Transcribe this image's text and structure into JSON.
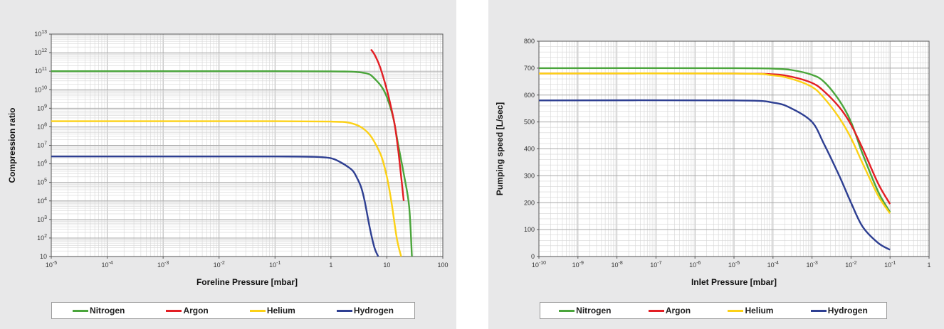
{
  "chart_data": [
    {
      "type": "line",
      "xlabel": "Foreline Pressure [mbar]",
      "ylabel": "Compression ratio",
      "xscale": "log",
      "yscale": "log",
      "xlim": [
        1e-05,
        100
      ],
      "ylim": [
        10,
        10000000000000
      ],
      "grid": true,
      "legend": "bottom",
      "x_ticks": [
        {
          "base": "10",
          "exp": "-5"
        },
        {
          "base": "10",
          "exp": "-4"
        },
        {
          "base": "10",
          "exp": "-3"
        },
        {
          "base": "10",
          "exp": "-2"
        },
        {
          "base": "10",
          "exp": "-1"
        },
        {
          "base": "1",
          "exp": ""
        },
        {
          "base": "10",
          "exp": ""
        },
        {
          "base": "100",
          "exp": ""
        }
      ],
      "y_ticks": [
        {
          "base": "10",
          "exp": ""
        },
        {
          "base": "10",
          "exp": "2"
        },
        {
          "base": "10",
          "exp": "3"
        },
        {
          "base": "10",
          "exp": "4"
        },
        {
          "base": "10",
          "exp": "5"
        },
        {
          "base": "10",
          "exp": "6"
        },
        {
          "base": "10",
          "exp": "7"
        },
        {
          "base": "10",
          "exp": "8"
        },
        {
          "base": "10",
          "exp": "9"
        },
        {
          "base": "10",
          "exp": "10"
        },
        {
          "base": "10",
          "exp": "11"
        },
        {
          "base": "10",
          "exp": "12"
        },
        {
          "base": "10",
          "exp": "13"
        }
      ],
      "series": [
        {
          "name": "Nitrogen",
          "color": "#4aa53b",
          "x": [
            1e-05,
            0.001,
            0.1,
            1,
            2,
            3,
            4,
            5,
            6,
            8,
            10,
            13,
            16,
            20,
            25,
            28
          ],
          "y": [
            100000000000,
            100000000000,
            100000000000,
            98000000000,
            95000000000,
            90000000000,
            80000000000,
            65000000000,
            40000000000,
            15000000000,
            4000000000,
            300000000,
            10000000,
            300000,
            5000,
            10
          ]
        },
        {
          "name": "Argon",
          "color": "#e31e24",
          "x": [
            5.2,
            6,
            7,
            8,
            10,
            12,
            14,
            16,
            18,
            20
          ],
          "y": [
            1500000000000,
            800000000000,
            300000000000,
            100000000000,
            10000000000,
            1000000000,
            100000000,
            5000000,
            200000,
            10000
          ]
        },
        {
          "name": "Helium",
          "color": "#fcd116",
          "x": [
            1e-05,
            0.001,
            0.1,
            1,
            2,
            3,
            4,
            5,
            6,
            8,
            10,
            12,
            15,
            18
          ],
          "y": [
            200000000,
            200000000,
            200000000,
            190000000,
            170000000,
            120000000,
            70000000,
            35000000,
            15000000,
            2500000,
            200000,
            10000,
            100,
            10
          ]
        },
        {
          "name": "Hydrogen",
          "color": "#2e3f92",
          "x": [
            1e-05,
            0.001,
            0.1,
            0.5,
            1,
            1.5,
            2,
            2.5,
            3,
            3.5,
            4,
            5,
            6,
            7
          ],
          "y": [
            2500000,
            2500000,
            2500000,
            2400000,
            2000000,
            1200000,
            700000,
            400000,
            150000,
            50000,
            10000,
            300,
            30,
            10
          ]
        }
      ]
    },
    {
      "type": "line",
      "xlabel": "Inlet Pressure [mbar]",
      "ylabel": "Pumping speed [L/sec]",
      "xscale": "log",
      "yscale": "linear",
      "xlim": [
        1e-10,
        1
      ],
      "ylim": [
        0,
        800
      ],
      "grid": true,
      "legend": "bottom",
      "x_ticks": [
        {
          "base": "10",
          "exp": "-10"
        },
        {
          "base": "10",
          "exp": "-9"
        },
        {
          "base": "10",
          "exp": "-8"
        },
        {
          "base": "10",
          "exp": "-7"
        },
        {
          "base": "10",
          "exp": "-6"
        },
        {
          "base": "10",
          "exp": "-5"
        },
        {
          "base": "10",
          "exp": "-4"
        },
        {
          "base": "10",
          "exp": "-3"
        },
        {
          "base": "10",
          "exp": "-2"
        },
        {
          "base": "10",
          "exp": "-1"
        },
        {
          "base": "1",
          "exp": ""
        }
      ],
      "y_ticks": [
        {
          "base": "0",
          "exp": ""
        },
        {
          "base": "100",
          "exp": ""
        },
        {
          "base": "200",
          "exp": ""
        },
        {
          "base": "300",
          "exp": ""
        },
        {
          "base": "400",
          "exp": ""
        },
        {
          "base": "500",
          "exp": ""
        },
        {
          "base": "600",
          "exp": ""
        },
        {
          "base": "700",
          "exp": ""
        },
        {
          "base": "800",
          "exp": ""
        }
      ],
      "series": [
        {
          "name": "Nitrogen",
          "color": "#4aa53b",
          "x": [
            1e-10,
            1e-05,
            0.0001,
            0.0003,
            0.001,
            0.002,
            0.005,
            0.01,
            0.02,
            0.05,
            0.1
          ],
          "y": [
            700,
            700,
            698,
            693,
            675,
            650,
            580,
            500,
            380,
            240,
            165
          ]
        },
        {
          "name": "Argon",
          "color": "#e31e24",
          "x": [
            1e-10,
            1e-05,
            0.0001,
            0.0003,
            0.001,
            0.002,
            0.005,
            0.01,
            0.02,
            0.05,
            0.1
          ],
          "y": [
            680,
            680,
            677,
            668,
            645,
            615,
            555,
            490,
            400,
            270,
            195
          ]
        },
        {
          "name": "Helium",
          "color": "#fcd116",
          "x": [
            1e-10,
            1e-05,
            0.0001,
            0.0003,
            0.001,
            0.002,
            0.005,
            0.01,
            0.02,
            0.05,
            0.1
          ],
          "y": [
            680,
            680,
            673,
            660,
            630,
            590,
            515,
            440,
            345,
            225,
            160
          ]
        },
        {
          "name": "Hydrogen",
          "color": "#2e3f92",
          "x": [
            1e-10,
            1e-05,
            0.0001,
            0.0003,
            0.001,
            0.002,
            0.005,
            0.01,
            0.02,
            0.05,
            0.1
          ],
          "y": [
            580,
            580,
            572,
            550,
            500,
            420,
            300,
            200,
            110,
            50,
            25
          ]
        }
      ]
    }
  ]
}
